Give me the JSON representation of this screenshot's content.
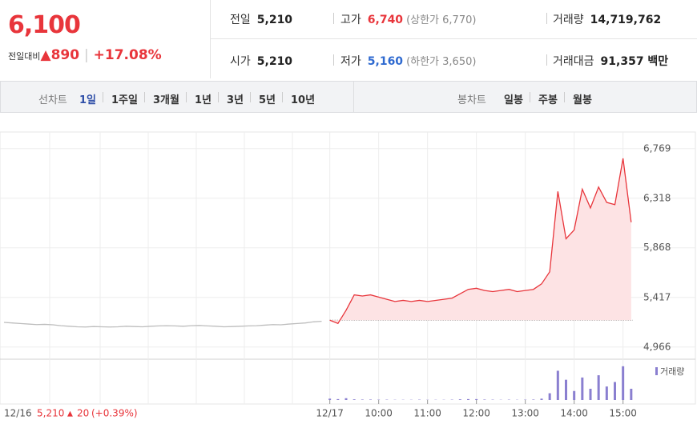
{
  "header": {
    "price": "6,100",
    "change_label": "전일대비",
    "change": "890",
    "change_rate": "+17.08%"
  },
  "info": [
    {
      "label": "전일",
      "value": "5,210"
    },
    {
      "label": "고가",
      "value": "6,740",
      "sub": "(상한가 6,770)"
    },
    {
      "label": "거래량",
      "value": "14,719,762"
    },
    {
      "label": "시가",
      "value": "5,210"
    },
    {
      "label": "저가",
      "value": "5,160",
      "sub": "(하한가 3,650)"
    },
    {
      "label": "거래대금",
      "value": "91,357 백만"
    }
  ],
  "tabs": {
    "line_label": "선차트",
    "line": [
      "1일",
      "1주일",
      "3개월",
      "1년",
      "3년",
      "5년",
      "10년"
    ],
    "candle_label": "봉차트",
    "candle": [
      "일봉",
      "주봉",
      "월봉"
    ]
  },
  "footer": {
    "date": "12/16",
    "price": "5,210",
    "change": "20",
    "rate": "(+0.39%)"
  },
  "chart_data": [
    {
      "type": "line",
      "xlim": [
        0,
        78
      ],
      "ylim": [
        4870,
        6920
      ],
      "yticks": [
        {
          "value": 6769,
          "label": "6,769"
        },
        {
          "value": 6318,
          "label": "6,318"
        },
        {
          "value": 5868,
          "label": "5,868"
        },
        {
          "value": 5417,
          "label": "5,417"
        },
        {
          "value": 4966,
          "label": "4,966"
        }
      ],
      "xticks": [
        {
          "value": 40,
          "label": "12/17"
        },
        {
          "value": 46,
          "label": "10:00"
        },
        {
          "value": 52,
          "label": "11:00"
        },
        {
          "value": 58,
          "label": "12:00"
        },
        {
          "value": 64,
          "label": "13:00"
        },
        {
          "value": 70,
          "label": "14:00"
        },
        {
          "value": 76,
          "label": "15:00"
        }
      ],
      "reference_line": 5210,
      "grid": true,
      "series": [
        {
          "color": "#bdbdbd",
          "values": [
            5190,
            5185,
            5180,
            5175,
            5170,
            5172,
            5168,
            5160,
            5155,
            5150,
            5148,
            5152,
            5150,
            5148,
            5150,
            5155,
            5152,
            5150,
            5155,
            5158,
            5160,
            5158,
            5155,
            5160,
            5162,
            5158,
            5155,
            5150,
            5152,
            5155,
            5158,
            5160,
            5165,
            5170,
            5168,
            5175,
            5180,
            5185,
            5195,
            5200,
            null,
            null,
            null,
            null,
            null,
            null,
            null,
            null,
            null,
            null,
            null,
            null,
            null,
            null,
            null,
            null,
            null,
            null,
            null,
            null,
            null,
            null,
            null,
            null,
            null,
            null,
            null,
            null,
            null,
            null,
            null,
            null,
            null,
            null,
            null,
            null,
            null,
            null
          ]
        },
        {
          "color": "#e8353b",
          "fill": "#fde3e4",
          "values": [
            null,
            null,
            null,
            null,
            null,
            null,
            null,
            null,
            null,
            null,
            null,
            null,
            null,
            null,
            null,
            null,
            null,
            null,
            null,
            null,
            null,
            null,
            null,
            null,
            null,
            null,
            null,
            null,
            null,
            null,
            null,
            null,
            null,
            null,
            null,
            null,
            null,
            null,
            null,
            null,
            5210,
            5180,
            5300,
            5440,
            5430,
            5440,
            5420,
            5400,
            5380,
            5390,
            5380,
            5390,
            5380,
            5390,
            5400,
            5410,
            5450,
            5490,
            5500,
            5480,
            5470,
            5480,
            5490,
            5470,
            5480,
            5490,
            5540,
            5650,
            6380,
            5950,
            6030,
            6400,
            6230,
            6420,
            6280,
            6260,
            6680,
            6100
          ]
        }
      ]
    },
    {
      "type": "bar",
      "ylim": [
        0,
        1600000
      ],
      "series": [
        {
          "name": "거래량",
          "color": "#8a7fd0",
          "values": [
            0,
            0,
            0,
            0,
            0,
            0,
            0,
            0,
            0,
            0,
            0,
            0,
            0,
            0,
            0,
            0,
            0,
            0,
            0,
            0,
            0,
            0,
            0,
            0,
            0,
            0,
            0,
            0,
            0,
            0,
            0,
            0,
            0,
            0,
            0,
            0,
            0,
            0,
            0,
            0,
            60000,
            40000,
            80000,
            30000,
            20000,
            20000,
            15000,
            15000,
            10000,
            10000,
            10000,
            15000,
            10000,
            10000,
            10000,
            15000,
            30000,
            40000,
            40000,
            20000,
            15000,
            10000,
            15000,
            10000,
            15000,
            20000,
            60000,
            300000,
            1300000,
            900000,
            400000,
            1000000,
            500000,
            1100000,
            600000,
            800000,
            1500000,
            500000
          ]
        }
      ]
    }
  ]
}
